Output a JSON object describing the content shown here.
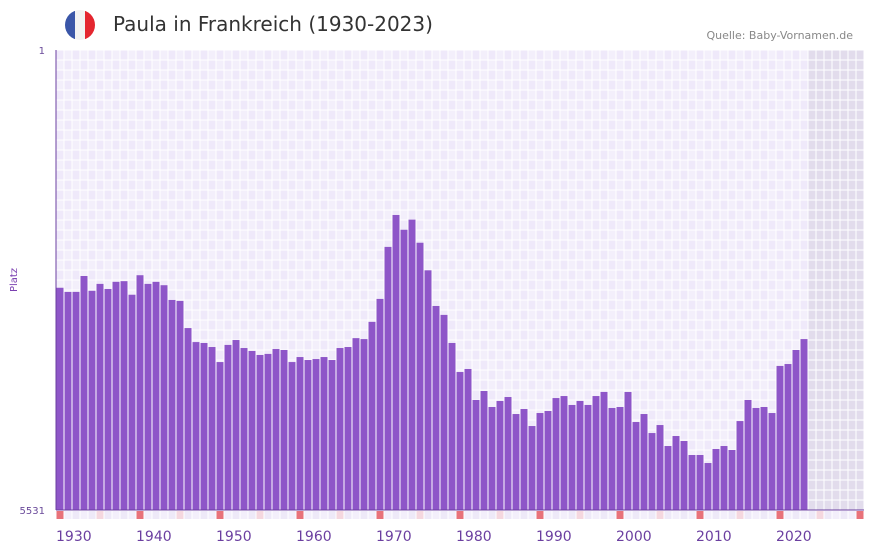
{
  "header": {
    "title": "Paula in Frankreich (1930-2023)",
    "source": "Quelle: Baby-Vornamen.de",
    "flag": "france-flag-icon"
  },
  "colors": {
    "bar": "#8e56c8",
    "marker_decade": "#e8727a",
    "marker_half": "#f5d7df",
    "grid": "#efe9fa",
    "future": "#e2dcec"
  },
  "chart_data": {
    "type": "bar",
    "title": "Paula in Frankreich (1930-2023)",
    "ylabel": "Platz",
    "xlabel": "",
    "y_scale": "log, inverted (rank 1 at top)",
    "ylim": [
      1,
      5531
    ],
    "y_ticks": [
      "1",
      "5531"
    ],
    "x_range": [
      1930,
      2030
    ],
    "x_ticks": [
      "1930",
      "1940",
      "1950",
      "1960",
      "1970",
      "1980",
      "1990",
      "2000",
      "2010",
      "2020"
    ],
    "years_start": 1930,
    "values": [
      86,
      93,
      93,
      69,
      91,
      80,
      88,
      77,
      76,
      98,
      68,
      80,
      77,
      82,
      108,
      110,
      183,
      238,
      242,
      261,
      346,
      251,
      229,
      266,
      281,
      303,
      297,
      271,
      276,
      346,
      315,
      333,
      327,
      315,
      333,
      266,
      261,
      221,
      225,
      163,
      106,
      40,
      22,
      29,
      24,
      37,
      62,
      121,
      143,
      242,
      417,
      394,
      704,
      595,
      803,
      717,
      666,
      916,
      834,
      1147,
      899,
      865,
      679,
      654,
      773,
      717,
      773,
      654,
      606,
      818,
      803,
      606,
      1064,
      916,
      1308,
      1126,
      1668,
      1383,
      1518,
      1974,
      1974,
      2294,
      1764,
      1668,
      1797,
      1045,
      704,
      818,
      803,
      899,
      372,
      359,
      276,
      225
    ]
  }
}
